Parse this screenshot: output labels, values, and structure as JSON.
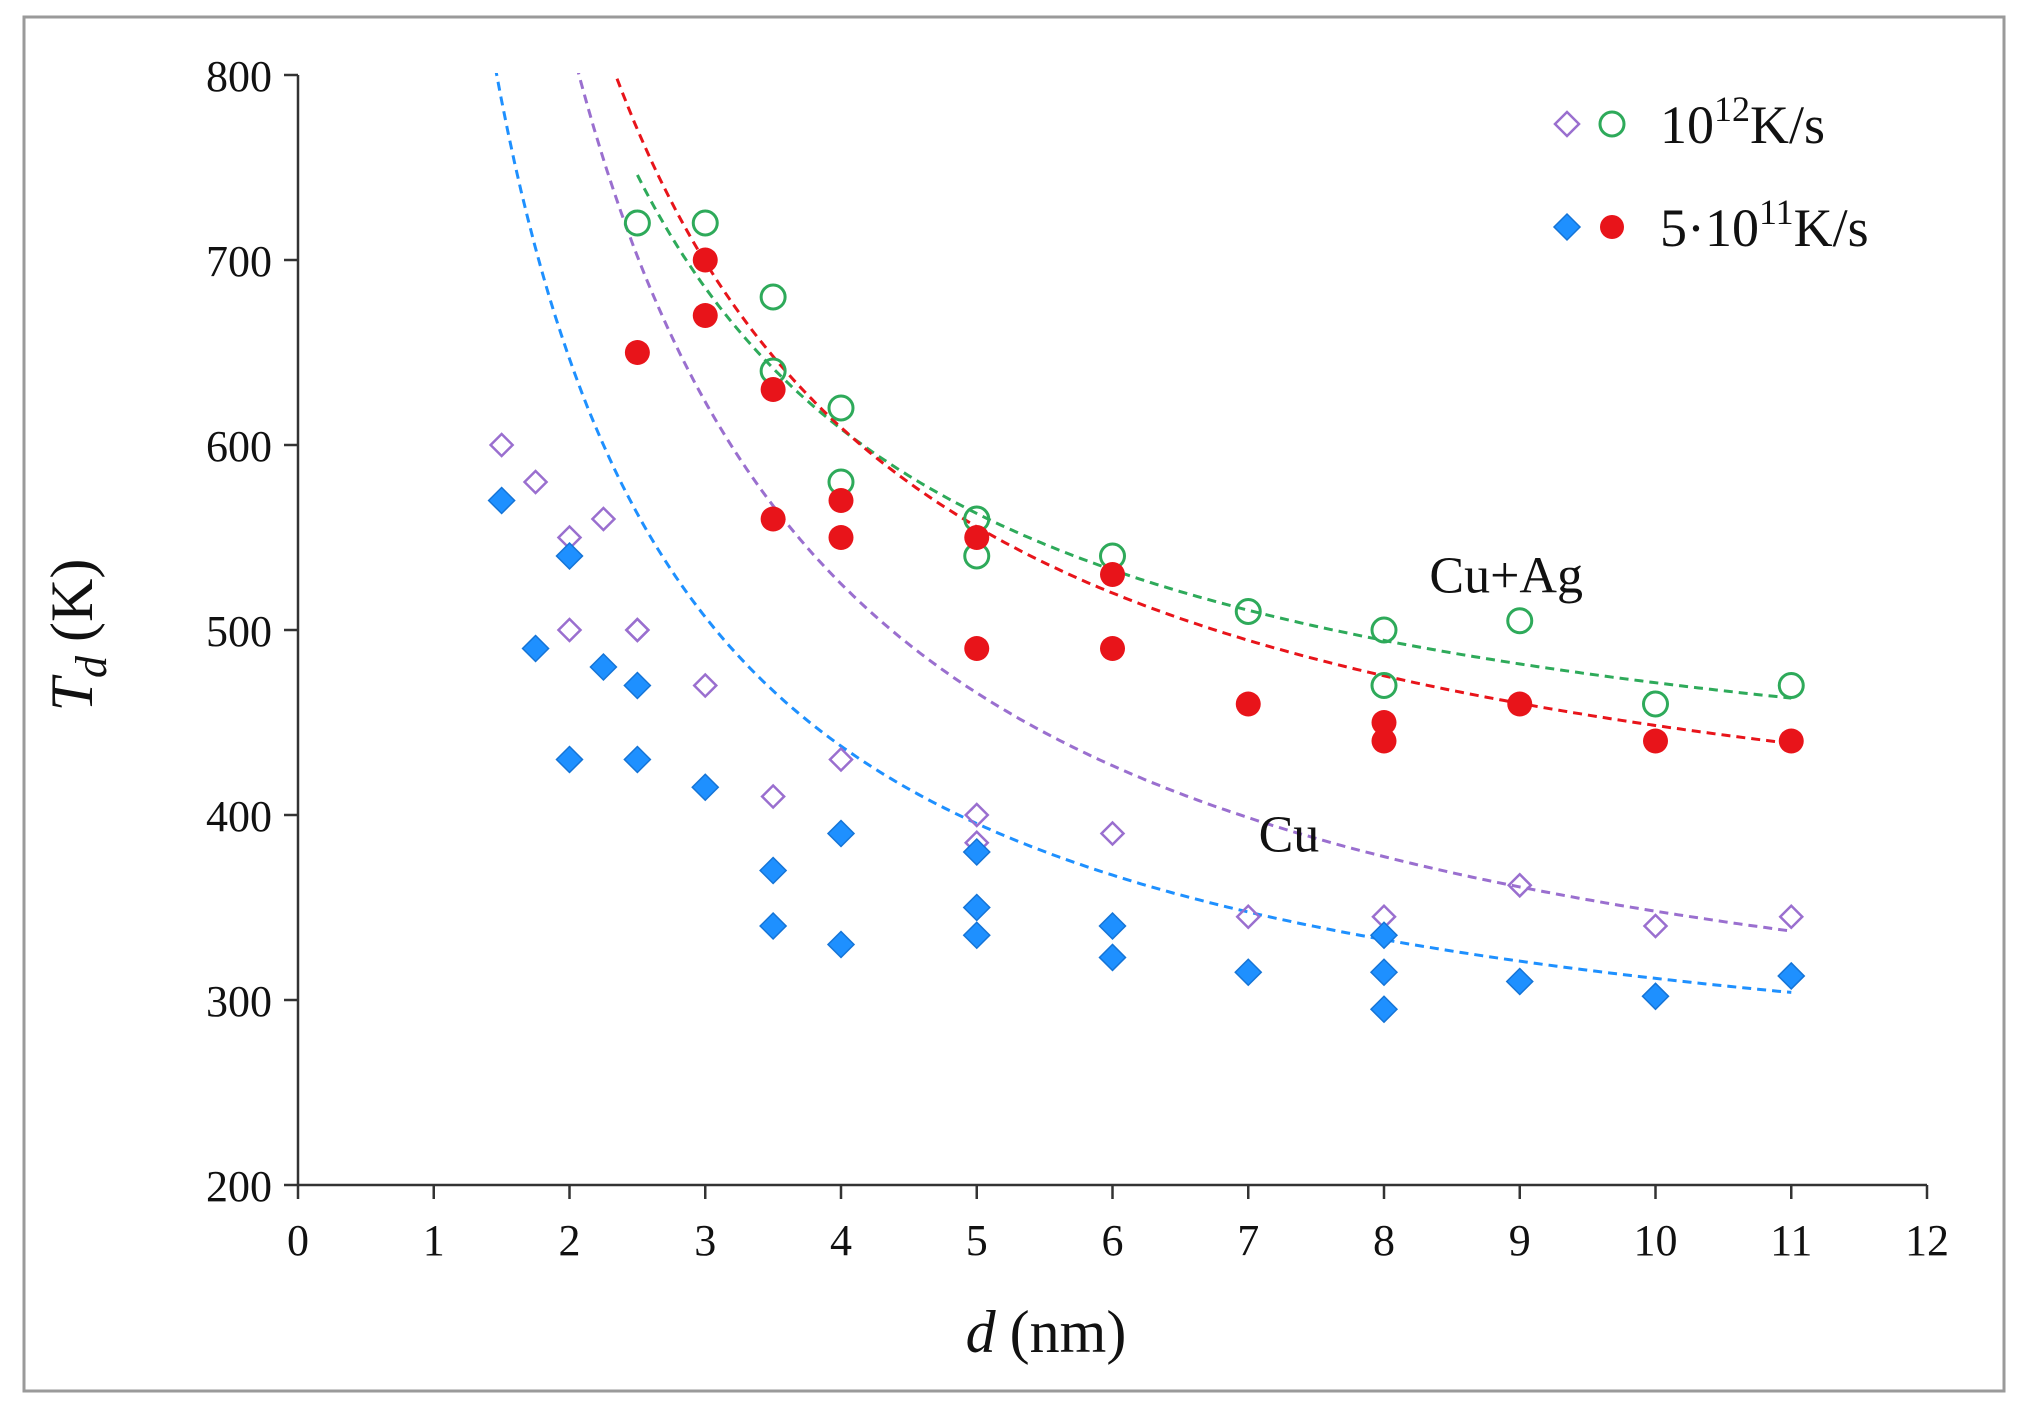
{
  "chart_data": {
    "type": "scatter",
    "xlabel": "d (nm)",
    "xlabel_italic": "d",
    "xlabel_unit": "(nm)",
    "ylabel_base": "T",
    "ylabel_sub": "d",
    "ylabel_unit": "(K)",
    "xlim": [
      0,
      12
    ],
    "ylim": [
      200,
      800
    ],
    "xticks": [
      0,
      1,
      2,
      3,
      4,
      5,
      6,
      7,
      8,
      9,
      10,
      11,
      12
    ],
    "yticks": [
      200,
      300,
      400,
      500,
      600,
      700,
      800
    ],
    "grid": false,
    "legend_placement": "top-right",
    "legend": [
      {
        "label_base": "10",
        "label_sup": "12",
        "label_unit": "K/s",
        "markers": [
          "diamond-open",
          "circle-open"
        ]
      },
      {
        "label_base": "5·10",
        "label_sup": "11",
        "label_unit": "K/s",
        "markers": [
          "diamond-filled",
          "circle-filled"
        ]
      }
    ],
    "annotations": [
      {
        "text": "Cu+Ag",
        "x": 8.9,
        "y": 530
      },
      {
        "text": "Cu",
        "x": 7.3,
        "y": 390
      }
    ],
    "series": [
      {
        "group": "Cu",
        "rate": "1e12",
        "marker": "diamond-open",
        "color": "#9a6fcf",
        "points": [
          [
            1.5,
            600
          ],
          [
            1.75,
            580
          ],
          [
            2,
            550
          ],
          [
            2,
            500
          ],
          [
            2.25,
            560
          ],
          [
            2.5,
            500
          ],
          [
            2.5,
            500
          ],
          [
            3,
            470
          ],
          [
            3.5,
            410
          ],
          [
            4,
            430
          ],
          [
            5,
            400
          ],
          [
            5,
            385
          ],
          [
            6,
            390
          ],
          [
            7,
            345
          ],
          [
            8,
            345
          ],
          [
            9,
            362
          ],
          [
            10,
            340
          ],
          [
            11,
            345
          ]
        ],
        "trend": {
          "a": 230,
          "b": 1180,
          "x0": 1.2,
          "x1": 11
        }
      },
      {
        "group": "Cu",
        "rate": "5e11",
        "marker": "diamond-filled",
        "color": "#1e90ff",
        "points": [
          [
            1.5,
            570
          ],
          [
            1.75,
            490
          ],
          [
            2,
            540
          ],
          [
            2,
            430
          ],
          [
            2.25,
            480
          ],
          [
            2.5,
            470
          ],
          [
            2.5,
            430
          ],
          [
            3,
            415
          ],
          [
            3.5,
            370
          ],
          [
            3.5,
            340
          ],
          [
            4,
            390
          ],
          [
            4,
            330
          ],
          [
            5,
            380
          ],
          [
            5,
            350
          ],
          [
            5,
            335
          ],
          [
            6,
            340
          ],
          [
            6,
            323
          ],
          [
            7,
            315
          ],
          [
            8,
            335
          ],
          [
            8,
            315
          ],
          [
            8,
            295
          ],
          [
            9,
            310
          ],
          [
            10,
            302
          ],
          [
            11,
            313
          ]
        ],
        "trend": {
          "a": 228,
          "b": 837,
          "x0": 1.1,
          "x1": 11
        }
      },
      {
        "group": "Cu+Ag",
        "rate": "1e12",
        "marker": "circle-open",
        "color": "#2eaa5a",
        "points": [
          [
            2.5,
            720
          ],
          [
            3,
            720
          ],
          [
            3.5,
            680
          ],
          [
            3.5,
            640
          ],
          [
            4,
            620
          ],
          [
            4,
            580
          ],
          [
            5,
            560
          ],
          [
            5,
            540
          ],
          [
            6,
            540
          ],
          [
            7,
            510
          ],
          [
            8,
            500
          ],
          [
            8,
            470
          ],
          [
            9,
            505
          ],
          [
            10,
            460
          ],
          [
            11,
            470
          ]
        ],
        "trend": {
          "a": 380,
          "b": 915,
          "x0": 2.5,
          "x1": 11
        }
      },
      {
        "group": "Cu+Ag",
        "rate": "5e11",
        "marker": "circle-filled",
        "color": "#e8141a",
        "points": [
          [
            2.5,
            650
          ],
          [
            3,
            700
          ],
          [
            3,
            670
          ],
          [
            3.5,
            630
          ],
          [
            3.5,
            560
          ],
          [
            4,
            570
          ],
          [
            4,
            550
          ],
          [
            5,
            550
          ],
          [
            5,
            490
          ],
          [
            6,
            530
          ],
          [
            6,
            490
          ],
          [
            7,
            460
          ],
          [
            8,
            450
          ],
          [
            8,
            440
          ],
          [
            9,
            460
          ],
          [
            10,
            440
          ],
          [
            11,
            440
          ]
        ],
        "trend": {
          "a": 341,
          "b": 1074,
          "x0": 2.35,
          "x1": 11
        }
      }
    ]
  }
}
